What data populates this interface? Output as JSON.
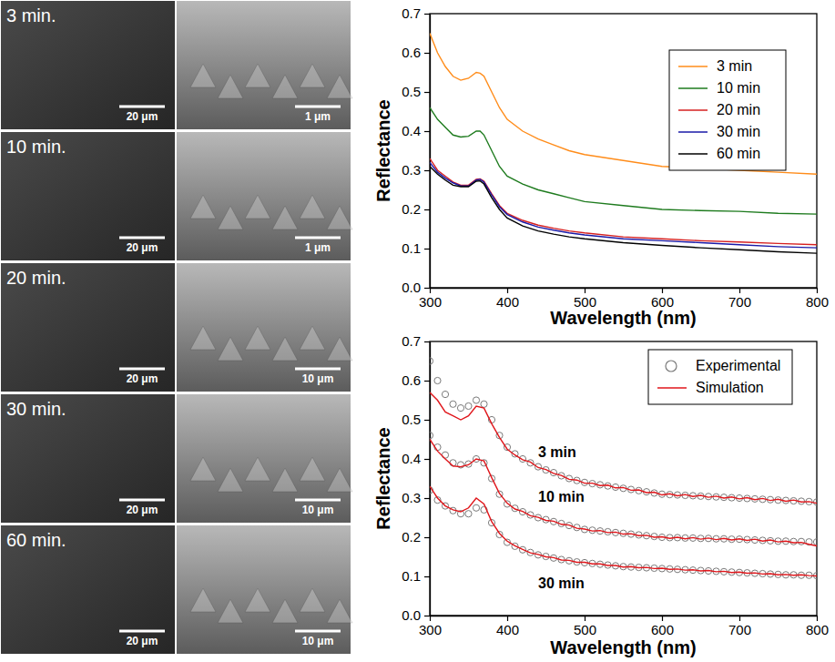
{
  "sem_panels": [
    {
      "label": "3 min.",
      "scale_bars": [
        "20 μm",
        "1 μm"
      ]
    },
    {
      "label": "10 min.",
      "scale_bars": [
        "20 μm",
        "1 μm"
      ]
    },
    {
      "label": "20 min.",
      "scale_bars": [
        "20 μm",
        "10 μm"
      ]
    },
    {
      "label": "30 min.",
      "scale_bars": [
        "20 μm",
        "10 μm"
      ]
    },
    {
      "label": "60 min.",
      "scale_bars": [
        "20 μm",
        "10 μm"
      ]
    }
  ],
  "chart_data": [
    {
      "type": "line",
      "x_label": "Wavelength (nm)",
      "y_label": "Reflectance",
      "xlim": [
        300,
        800
      ],
      "xticks": [
        300,
        400,
        500,
        600,
        700,
        800
      ],
      "ylim": [
        0,
        0.7
      ],
      "yticks": [
        {
          "value": 0,
          "label": "0.0"
        },
        0.1,
        0.2,
        0.3,
        0.4,
        0.5,
        0.6,
        0.7
      ],
      "legend": "upper right",
      "x": [
        300,
        310,
        320,
        330,
        340,
        350,
        360,
        365,
        370,
        380,
        390,
        400,
        420,
        440,
        460,
        480,
        500,
        550,
        600,
        650,
        700,
        750,
        800
      ],
      "series": [
        {
          "name": "3 min",
          "color": "#ff8c1a",
          "values": [
            0.65,
            0.6,
            0.565,
            0.54,
            0.53,
            0.535,
            0.55,
            0.548,
            0.54,
            0.5,
            0.46,
            0.43,
            0.4,
            0.38,
            0.365,
            0.35,
            0.34,
            0.325,
            0.31,
            0.305,
            0.3,
            0.295,
            0.29
          ]
        },
        {
          "name": "10 min",
          "color": "#1e7b1e",
          "values": [
            0.46,
            0.43,
            0.41,
            0.39,
            0.385,
            0.387,
            0.4,
            0.4,
            0.39,
            0.35,
            0.31,
            0.285,
            0.265,
            0.25,
            0.24,
            0.23,
            0.22,
            0.21,
            0.2,
            0.197,
            0.195,
            0.19,
            0.188
          ]
        },
        {
          "name": "20 min",
          "color": "#d62020",
          "values": [
            0.33,
            0.3,
            0.285,
            0.27,
            0.262,
            0.262,
            0.277,
            0.278,
            0.272,
            0.24,
            0.21,
            0.19,
            0.172,
            0.16,
            0.152,
            0.145,
            0.14,
            0.13,
            0.125,
            0.12,
            0.117,
            0.113,
            0.11
          ]
        },
        {
          "name": "30 min",
          "color": "#1a1aa8",
          "values": [
            0.32,
            0.295,
            0.28,
            0.268,
            0.26,
            0.26,
            0.275,
            0.277,
            0.27,
            0.237,
            0.207,
            0.187,
            0.168,
            0.155,
            0.147,
            0.14,
            0.135,
            0.125,
            0.12,
            0.115,
            0.11,
            0.105,
            0.102
          ]
        },
        {
          "name": "60 min",
          "color": "#000000",
          "values": [
            0.31,
            0.29,
            0.275,
            0.262,
            0.258,
            0.258,
            0.272,
            0.273,
            0.265,
            0.23,
            0.2,
            0.178,
            0.158,
            0.145,
            0.137,
            0.13,
            0.125,
            0.115,
            0.108,
            0.102,
            0.097,
            0.092,
            0.088
          ]
        }
      ]
    },
    {
      "type": "line",
      "x_label": "Wavelength (nm)",
      "y_label": "Reflectance",
      "xlim": [
        300,
        800
      ],
      "xticks": [
        300,
        400,
        500,
        600,
        700,
        800
      ],
      "ylim": [
        0,
        0.7
      ],
      "yticks": [
        {
          "value": 0,
          "label": "0.0"
        },
        0.1,
        0.2,
        0.3,
        0.4,
        0.5,
        0.6,
        0.7
      ],
      "legend": "upper right",
      "annotations": [
        {
          "text": "3 min",
          "x": 440,
          "y": 0.405
        },
        {
          "text": "10 min",
          "x": 440,
          "y": 0.29
        },
        {
          "text": "30 min",
          "x": 440,
          "y": 0.07
        }
      ],
      "x": [
        300,
        310,
        320,
        330,
        340,
        350,
        360,
        370,
        380,
        390,
        400,
        410,
        420,
        430,
        440,
        450,
        460,
        470,
        480,
        490,
        500,
        510,
        520,
        530,
        540,
        550,
        560,
        570,
        580,
        590,
        600,
        610,
        620,
        630,
        640,
        650,
        660,
        670,
        680,
        690,
        700,
        710,
        720,
        730,
        740,
        750,
        760,
        770,
        780,
        790,
        800
      ],
      "series": [
        {
          "name": "Experimental",
          "type": "scatter",
          "marker": "circle",
          "color": "#7a7a7a",
          "curves": [
            {
              "values": [
                0.65,
                0.6,
                0.565,
                0.54,
                0.53,
                0.535,
                0.55,
                0.54,
                0.5,
                0.46,
                0.43,
                0.413,
                0.4,
                0.39,
                0.38,
                0.372,
                0.365,
                0.357,
                0.35,
                0.345,
                0.34,
                0.337,
                0.334,
                0.331,
                0.328,
                0.325,
                0.322,
                0.319,
                0.316,
                0.313,
                0.31,
                0.309,
                0.308,
                0.307,
                0.306,
                0.305,
                0.304,
                0.303,
                0.302,
                0.301,
                0.3,
                0.299,
                0.298,
                0.297,
                0.296,
                0.295,
                0.294,
                0.293,
                0.292,
                0.291,
                0.29
              ]
            },
            {
              "values": [
                0.46,
                0.43,
                0.41,
                0.39,
                0.385,
                0.387,
                0.4,
                0.39,
                0.35,
                0.31,
                0.285,
                0.274,
                0.265,
                0.257,
                0.25,
                0.245,
                0.24,
                0.235,
                0.23,
                0.225,
                0.22,
                0.218,
                0.216,
                0.214,
                0.212,
                0.21,
                0.208,
                0.206,
                0.204,
                0.202,
                0.2,
                0.199,
                0.199,
                0.198,
                0.198,
                0.197,
                0.197,
                0.196,
                0.196,
                0.195,
                0.195,
                0.194,
                0.193,
                0.192,
                0.191,
                0.19,
                0.19,
                0.189,
                0.189,
                0.188,
                0.188
              ]
            },
            {
              "values": [
                0.32,
                0.295,
                0.28,
                0.268,
                0.26,
                0.26,
                0.275,
                0.27,
                0.237,
                0.207,
                0.187,
                0.177,
                0.168,
                0.161,
                0.155,
                0.151,
                0.147,
                0.143,
                0.14,
                0.137,
                0.135,
                0.133,
                0.131,
                0.129,
                0.127,
                0.125,
                0.124,
                0.123,
                0.122,
                0.121,
                0.12,
                0.119,
                0.118,
                0.117,
                0.116,
                0.115,
                0.114,
                0.113,
                0.112,
                0.111,
                0.11,
                0.109,
                0.108,
                0.107,
                0.106,
                0.105,
                0.104,
                0.104,
                0.103,
                0.103,
                0.102
              ]
            }
          ]
        },
        {
          "name": "Simulation",
          "type": "line",
          "color": "#e0161b",
          "curves": [
            {
              "values": [
                0.57,
                0.55,
                0.52,
                0.51,
                0.5,
                0.51,
                0.535,
                0.53,
                0.49,
                0.455,
                0.425,
                0.41,
                0.398,
                0.392,
                0.378,
                0.373,
                0.363,
                0.358,
                0.348,
                0.346,
                0.338,
                0.338,
                0.332,
                0.333,
                0.326,
                0.327,
                0.32,
                0.321,
                0.314,
                0.315,
                0.308,
                0.311,
                0.306,
                0.309,
                0.304,
                0.307,
                0.302,
                0.305,
                0.3,
                0.303,
                0.298,
                0.301,
                0.296,
                0.299,
                0.294,
                0.297,
                0.292,
                0.295,
                0.29,
                0.291,
                0.287
              ]
            },
            {
              "values": [
                0.45,
                0.42,
                0.4,
                0.382,
                0.38,
                0.385,
                0.4,
                0.395,
                0.352,
                0.312,
                0.287,
                0.272,
                0.266,
                0.255,
                0.251,
                0.243,
                0.241,
                0.233,
                0.231,
                0.223,
                0.221,
                0.216,
                0.217,
                0.212,
                0.213,
                0.208,
                0.209,
                0.204,
                0.205,
                0.2,
                0.201,
                0.197,
                0.2,
                0.196,
                0.199,
                0.195,
                0.198,
                0.194,
                0.197,
                0.193,
                0.196,
                0.192,
                0.195,
                0.19,
                0.193,
                0.188,
                0.19,
                0.186,
                0.187,
                0.182,
                0.178
              ]
            },
            {
              "values": [
                0.33,
                0.3,
                0.28,
                0.27,
                0.265,
                0.275,
                0.3,
                0.285,
                0.24,
                0.21,
                0.19,
                0.178,
                0.169,
                0.16,
                0.156,
                0.15,
                0.148,
                0.142,
                0.141,
                0.136,
                0.136,
                0.132,
                0.132,
                0.128,
                0.128,
                0.124,
                0.125,
                0.122,
                0.123,
                0.12,
                0.121,
                0.118,
                0.119,
                0.116,
                0.117,
                0.114,
                0.115,
                0.112,
                0.113,
                0.11,
                0.111,
                0.108,
                0.109,
                0.106,
                0.107,
                0.104,
                0.105,
                0.103,
                0.104,
                0.102,
                0.101
              ]
            }
          ]
        }
      ]
    }
  ]
}
